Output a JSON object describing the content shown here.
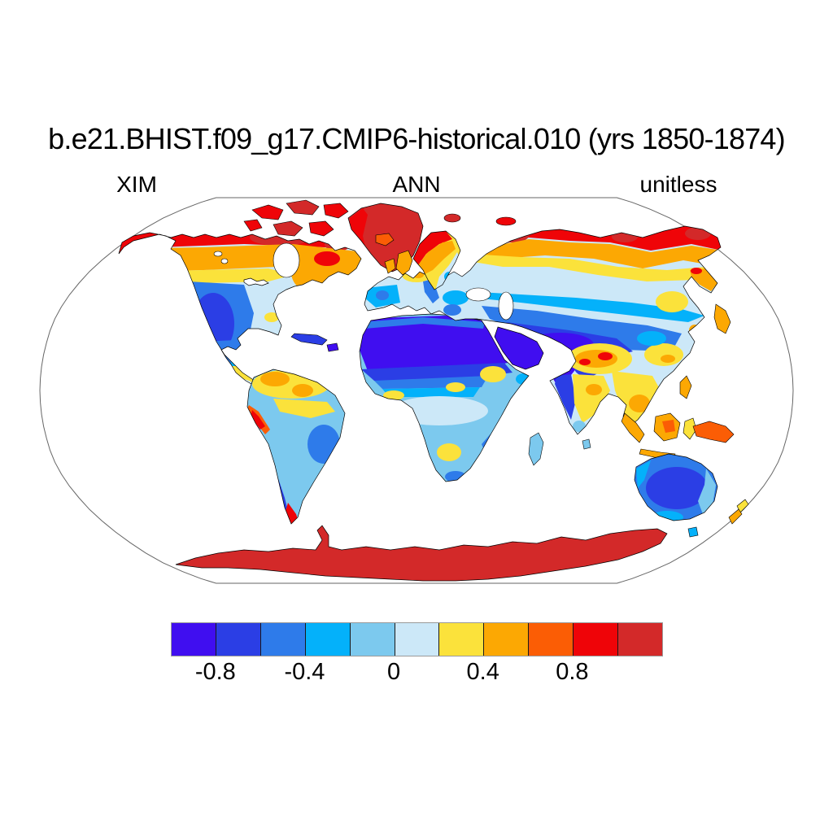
{
  "title": "b.e21.BHIST.f09_g17.CMIP6-historical.010 (yrs 1850-1874)",
  "labels": {
    "left": "XIM",
    "center": "ANN",
    "right": "unitless"
  },
  "colorbar": {
    "colors": [
      "#400EF0",
      "#2B3EE5",
      "#2E7BEA",
      "#04B1FA",
      "#7CC9EE",
      "#CCE8F8",
      "#FBE23B",
      "#FCA803",
      "#FB5D05",
      "#EF0408",
      "#D32929"
    ],
    "ticks": [
      "-0.8",
      "-0.4",
      "0",
      "0.4",
      "0.8"
    ],
    "tick_positions": [
      1,
      3,
      5,
      7,
      9
    ],
    "divisions": 11
  },
  "chart_data": {
    "type": "heatmap",
    "subtype": "filled-contour world map",
    "projection": "Robinson",
    "title": "b.e21.BHIST.f09_g17.CMIP6-historical.010 (yrs 1850-1874)",
    "variable_label": "XIM",
    "season_label": "ANN",
    "units": "unitless",
    "years": "1850-1874",
    "contour_levels": [
      -0.8,
      -0.6,
      -0.4,
      -0.2,
      0,
      0.2,
      0.4,
      0.6,
      0.8,
      1.0
    ],
    "palette": [
      "#400EF0",
      "#2B3EE5",
      "#2E7BEA",
      "#04B1FA",
      "#7CC9EE",
      "#CCE8F8",
      "#FBE23B",
      "#FCA803",
      "#FB5D05",
      "#EF0408",
      "#D32929"
    ],
    "ocean_fill": "#FFFFFF",
    "land_only_shading": true,
    "approx_region_values": {
      "antarctica": "> 1.0",
      "greenland": "> 1.0",
      "canadian_arctic_islands": "0.8 to > 1.0",
      "siberian_arctic_coast": "0.6 to > 1.0",
      "alaska_west_coast": "0.6 to 1.0",
      "boreal_canada_band": "0.2 to 0.6",
      "quebec_labrador": "0.4 to 0.8",
      "central_eastern_us": "-0.2 to 0",
      "western_north_america": "-0.8 to -0.4",
      "us_pacific_coast": "< -0.8",
      "mexico": "-0.6 to -0.2",
      "northern_south_america": "0.2 to 0.6",
      "amazon_band": "0.2 to 0.4",
      "peru_coast": "0.6 to 1.0",
      "andes_patagonia": "-0.8 to -0.6",
      "southern_chile_tip": "0.8 to 1.0",
      "europe_central": "-0.2 to 0.2",
      "uk_iceland_norway_coast": "0.4 to 1.0",
      "sahara_arabia_middle_east": "< -0.8",
      "central_africa": "-0.2 to 0",
      "southern_africa": "-0.4 to 0",
      "central_asia_mongolia": "-0.8 to -0.6",
      "mid_siberia": "-0.2 to 0",
      "tibetan_plateau": "0.4 to 1.0",
      "india_west": "-0.8 to -0.4",
      "india_east_southeast_asia": "0.2 to 0.6",
      "indonesia": "0.4 to 0.8",
      "new_guinea": "0.6 to 0.8",
      "japan_korea": "0.2 to 0.6",
      "australia": "-0.6 to -0.2",
      "new_zealand": "0.2 to 0.6"
    }
  }
}
